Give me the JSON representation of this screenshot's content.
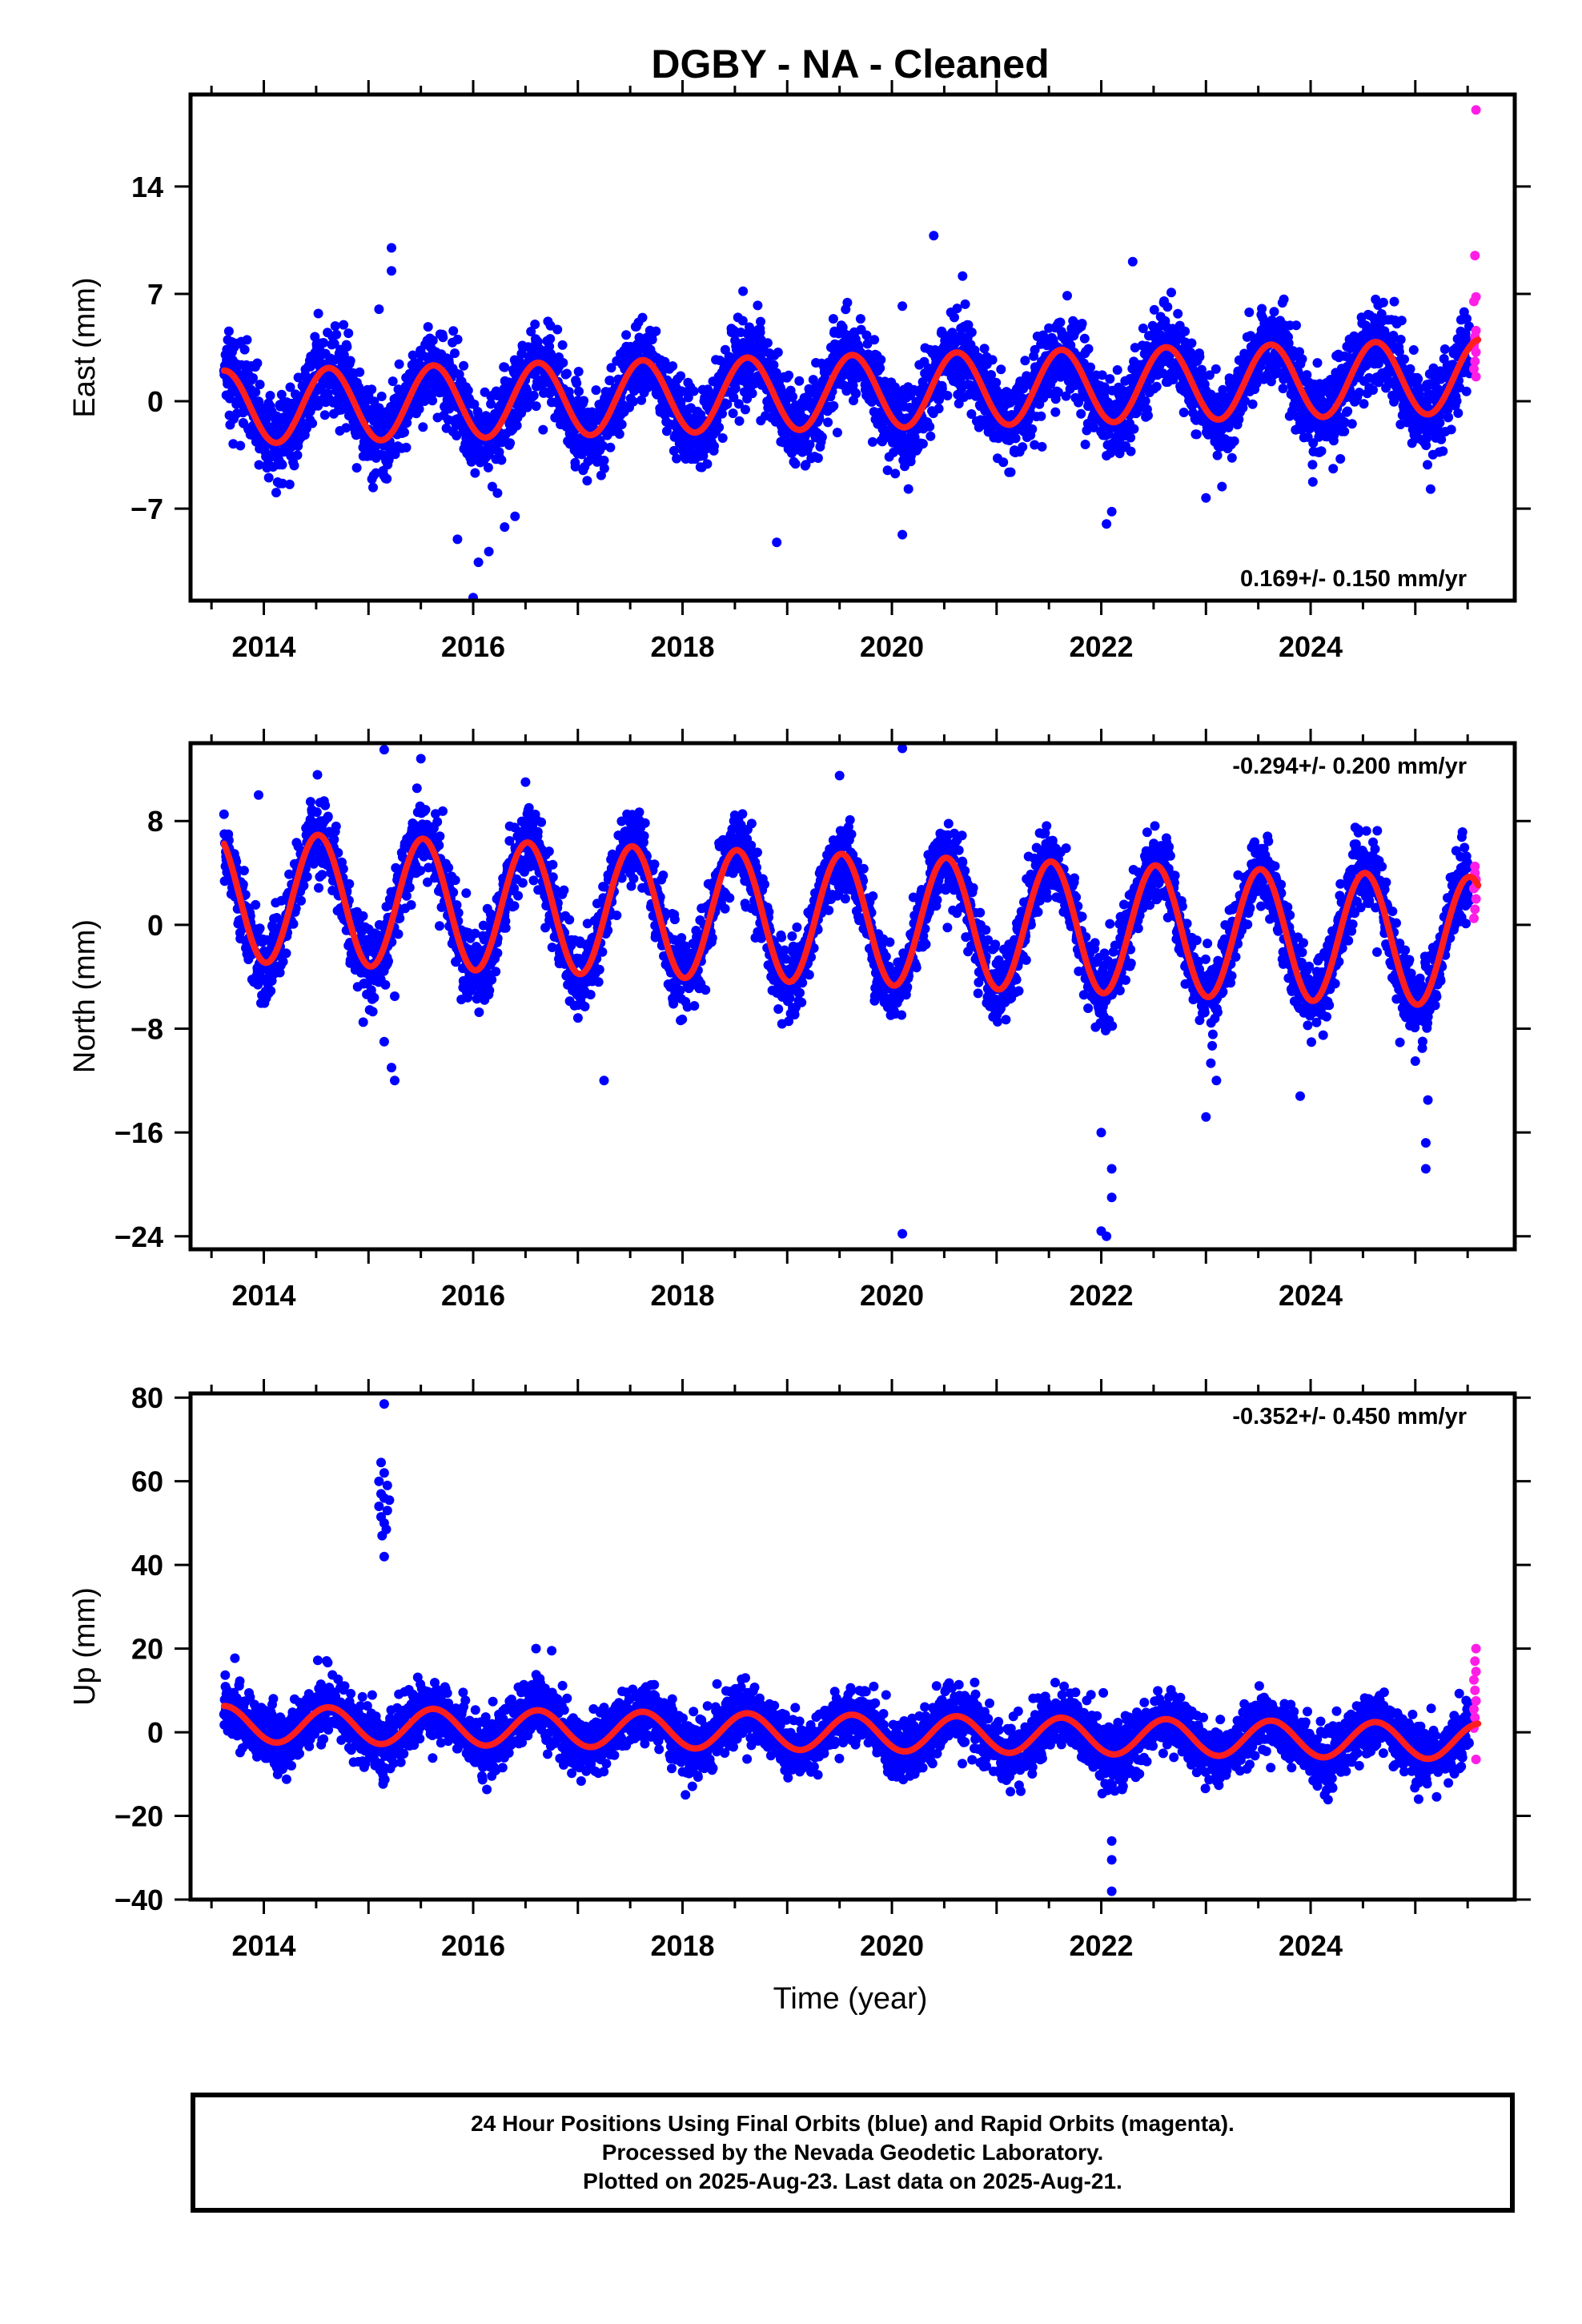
{
  "title": "DGBY  - NA - Cleaned",
  "xlabel": "Time (year)",
  "colors": {
    "final": "#0000ff",
    "rapid": "#ff1ee6",
    "model": "#ff1e1e",
    "axis": "#000000"
  },
  "caption": {
    "line1": "24 Hour Positions Using Final Orbits (blue) and Rapid Orbits (magenta).",
    "line2": "Processed by the Nevada Geodetic Laboratory.",
    "line3": "Plotted on 2025-Aug-23. Last data on 2025-Aug-21."
  },
  "chart_data": [
    {
      "type": "scatter",
      "component": "east",
      "ylabel": "East (mm)",
      "rate": "0.169+/- 0.150 mm/yr",
      "rate_position": "bottom-right",
      "xlim": [
        2013.3,
        2025.95
      ],
      "ylim": [
        -13,
        20
      ],
      "xticks": [
        2014,
        2016,
        2018,
        2020,
        2022,
        2024
      ],
      "yticks": [
        -7,
        0,
        7,
        14
      ],
      "series": [
        {
          "kind": "final",
          "x_range": [
            2013.62,
            2025.52
          ],
          "trend_start": -0.4,
          "trend_rate": 0.169,
          "annual_amp": 2.4,
          "annual_peak": 0.62,
          "noise": 1.35,
          "outliers": [
            [
              2015.22,
              10.0
            ],
            [
              2015.22,
              8.5
            ],
            [
              2016.0,
              -12.8
            ],
            [
              2016.05,
              -10.5
            ],
            [
              2016.15,
              -9.8
            ],
            [
              2015.85,
              -9.0
            ],
            [
              2016.3,
              -8.2
            ],
            [
              2016.4,
              -7.5
            ],
            [
              2020.4,
              10.8
            ],
            [
              2020.1,
              6.2
            ],
            [
              2020.1,
              -8.7
            ],
            [
              2018.9,
              -9.2
            ],
            [
              2022.3,
              9.1
            ],
            [
              2022.05,
              -8.0
            ],
            [
              2022.1,
              -7.2
            ],
            [
              2015.1,
              6.0
            ],
            [
              2023.0,
              -6.3
            ]
          ]
        },
        {
          "kind": "rapid",
          "x_range": [
            2025.55,
            2025.6
          ],
          "points": [
            [
              2025.58,
              19.0
            ],
            [
              2025.57,
              9.5
            ],
            [
              2025.58,
              6.8
            ],
            [
              2025.56,
              6.5
            ],
            [
              2025.58,
              4.6
            ],
            [
              2025.57,
              4.2
            ],
            [
              2025.56,
              3.6
            ],
            [
              2025.58,
              3.2
            ],
            [
              2025.57,
              2.6
            ],
            [
              2025.56,
              2.1
            ],
            [
              2025.58,
              1.6
            ],
            [
              2025.57,
              3.9
            ]
          ]
        },
        {
          "kind": "model",
          "trend_start": -0.4,
          "trend_rate": 0.169,
          "annual_amp": 2.4,
          "annual_peak": 0.62
        }
      ]
    },
    {
      "type": "scatter",
      "component": "north",
      "ylabel": "North (mm)",
      "rate": "-0.294+/- 0.200 mm/yr",
      "rate_position": "top-right",
      "xlim": [
        2013.3,
        2025.95
      ],
      "ylim": [
        -25,
        14
      ],
      "xticks": [
        2014,
        2016,
        2018,
        2020,
        2022,
        2024
      ],
      "yticks": [
        -24,
        -16,
        -8,
        0,
        8
      ],
      "series": [
        {
          "kind": "final",
          "x_range": [
            2013.62,
            2025.52
          ],
          "trend_start": 2.2,
          "trend_rate": -0.294,
          "annual_amp": 5.0,
          "annual_peak": 0.52,
          "noise": 1.4,
          "outliers": [
            [
              2015.15,
              13.5
            ],
            [
              2015.5,
              12.8
            ],
            [
              2015.25,
              -12.0
            ],
            [
              2015.22,
              -11.0
            ],
            [
              2015.15,
              -9.0
            ],
            [
              2014.95,
              -7.5
            ],
            [
              2015.25,
              -5.5
            ],
            [
              2017.25,
              -12.0
            ],
            [
              2020.1,
              13.6
            ],
            [
              2020.1,
              -23.8
            ],
            [
              2019.5,
              11.5
            ],
            [
              2022.0,
              -16.0
            ],
            [
              2022.1,
              -18.8
            ],
            [
              2022.1,
              -21.0
            ],
            [
              2022.05,
              -24.0
            ],
            [
              2022.0,
              -23.6
            ],
            [
              2023.0,
              -14.8
            ],
            [
              2023.1,
              -12.0
            ],
            [
              2023.9,
              -13.2
            ],
            [
              2025.1,
              -16.8
            ],
            [
              2025.1,
              -18.8
            ],
            [
              2025.12,
              -13.5
            ],
            [
              2025.0,
              -10.5
            ],
            [
              2013.95,
              10.0
            ],
            [
              2016.5,
              11.0
            ]
          ]
        },
        {
          "kind": "rapid",
          "x_range": [
            2025.55,
            2025.6
          ],
          "points": [
            [
              2025.57,
              4.5
            ],
            [
              2025.58,
              3.5
            ],
            [
              2025.56,
              2.8
            ],
            [
              2025.58,
              2.0
            ],
            [
              2025.57,
              1.2
            ],
            [
              2025.56,
              0.5
            ],
            [
              2025.58,
              3.0
            ],
            [
              2025.57,
              4.0
            ]
          ]
        },
        {
          "kind": "model",
          "trend_start": 2.2,
          "trend_rate": -0.294,
          "annual_amp": 5.0,
          "annual_peak": 0.52
        }
      ]
    },
    {
      "type": "scatter",
      "component": "up",
      "ylabel": "Up (mm)",
      "rate": "-0.352+/- 0.450 mm/yr",
      "rate_position": "top-right",
      "xlim": [
        2013.3,
        2025.95
      ],
      "ylim": [
        -40,
        81
      ],
      "xticks": [
        2014,
        2016,
        2018,
        2020,
        2022,
        2024
      ],
      "yticks": [
        -40,
        -20,
        0,
        20,
        40,
        60,
        80
      ],
      "series": [
        {
          "kind": "final",
          "x_range": [
            2013.62,
            2025.52
          ],
          "trend_start": 2.0,
          "trend_rate": -0.352,
          "annual_amp": 4.3,
          "annual_peak": 0.62,
          "noise": 3.5,
          "outliers": [
            [
              2015.15,
              78.5
            ],
            [
              2015.12,
              64.5
            ],
            [
              2015.15,
              62.0
            ],
            [
              2015.1,
              60.0
            ],
            [
              2015.18,
              59.0
            ],
            [
              2015.12,
              57.0
            ],
            [
              2015.15,
              56.0
            ],
            [
              2015.1,
              54.0
            ],
            [
              2015.18,
              53.0
            ],
            [
              2015.12,
              51.5
            ],
            [
              2015.15,
              50.0
            ],
            [
              2015.17,
              48.5
            ],
            [
              2015.13,
              47.0
            ],
            [
              2015.15,
              42.0
            ],
            [
              2015.2,
              55.5
            ],
            [
              2016.6,
              20.0
            ],
            [
              2016.75,
              19.5
            ],
            [
              2022.1,
              -26.0
            ],
            [
              2022.1,
              -30.5
            ],
            [
              2022.1,
              -38.0
            ]
          ]
        },
        {
          "kind": "rapid",
          "x_range": [
            2025.55,
            2025.6
          ],
          "points": [
            [
              2025.58,
              20.0
            ],
            [
              2025.57,
              17.0
            ],
            [
              2025.58,
              14.5
            ],
            [
              2025.56,
              12.5
            ],
            [
              2025.57,
              10.0
            ],
            [
              2025.58,
              7.5
            ],
            [
              2025.56,
              5.5
            ],
            [
              2025.57,
              3.5
            ],
            [
              2025.58,
              -6.5
            ],
            [
              2025.56,
              1.0
            ]
          ]
        },
        {
          "kind": "model",
          "trend_start": 2.0,
          "trend_rate": -0.352,
          "annual_amp": 4.3,
          "annual_peak": 0.62
        }
      ]
    }
  ]
}
